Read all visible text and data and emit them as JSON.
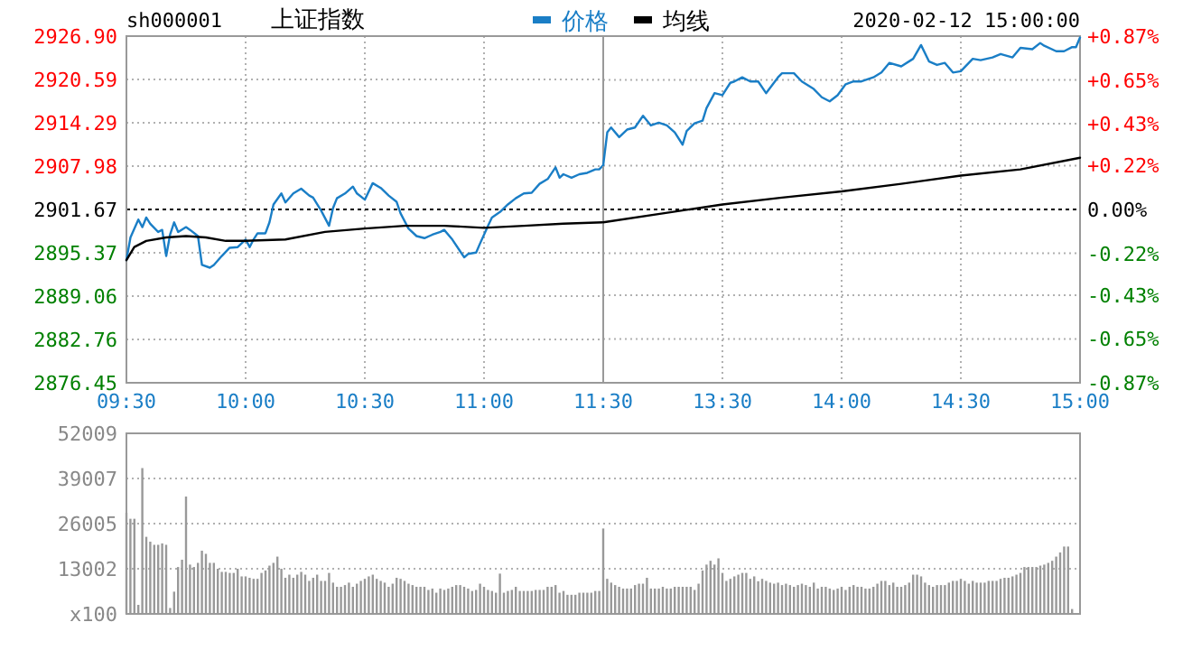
{
  "chart_data": [
    {
      "type": "line",
      "title": "上证指数",
      "subtitle": "sh000001",
      "legend": "top",
      "grid": true,
      "marker": "none",
      "line_style": "solid",
      "xlim": [
        9.5,
        11.5
      ],
      "xticks": [
        {
          "value": 9.5,
          "label": "09:30"
        },
        {
          "value": 10,
          "label": "10:00"
        },
        {
          "value": 10.5,
          "label": "10:30"
        },
        {
          "value": 11,
          "label": "11:00"
        },
        {
          "value": 11.5,
          "label": "11:30"
        }
      ],
      "ylim": [
        2876.45,
        2926.9
      ],
      "yticks": [
        {
          "value": 2876.45,
          "label": "2876.45"
        },
        {
          "value": 2882.76,
          "label": "2882.76"
        },
        {
          "value": 2889.06,
          "label": "2889.06"
        },
        {
          "value": 2895.37,
          "label": "2895.37"
        },
        {
          "value": 2901.67,
          "label": "2901.67"
        },
        {
          "value": 2907.98,
          "label": "2907.98"
        },
        {
          "value": 2914.29,
          "label": "2914.29"
        },
        {
          "value": 2920.59,
          "label": "2920.59"
        },
        {
          "value": 2926.9,
          "label": "2926.90"
        }
      ],
      "ref_lines": [
        {
          "axis": "y",
          "value": 2901.67,
          "color": "#000000",
          "line_style": "dotted"
        }
      ],
      "series": [
        {
          "name": "价格",
          "color": "#1a7ec6",
          "x": [
            9.5,
            9.517,
            9.55,
            9.567,
            9.583,
            9.6,
            9.633,
            9.65,
            9.667,
            9.683,
            9.7,
            9.717,
            9.75,
            9.767,
            9.8,
            9.817,
            9.85,
            9.867,
            9.9,
            9.933,
            9.967,
            10,
            10.017,
            10.033,
            10.05,
            10.083,
            10.1,
            10.117,
            10.15,
            10.167,
            10.2,
            10.233,
            10.267,
            10.283,
            10.317,
            10.35,
            10.367,
            10.383,
            10.417,
            10.45,
            10.467,
            10.5,
            10.533,
            10.567,
            10.6,
            10.633,
            10.65,
            10.683,
            10.717,
            10.75,
            10.783,
            10.817,
            10.833,
            10.867,
            10.917,
            10.933,
            10.967,
            10.983,
            11.017,
            11.033,
            11.067,
            11.1,
            11.133,
            11.167,
            11.2,
            11.233,
            11.267,
            11.3,
            11.317,
            11.333,
            11.367,
            11.4,
            11.433,
            11.467,
            11.483,
            11.5
          ],
          "values": [
            2894.3,
            2897.6,
            2900.2,
            2899.1,
            2900.5,
            2899.6,
            2898.4,
            2898.7,
            2894.9,
            2898.0,
            2899.8,
            2898.4,
            2899.1,
            2898.7,
            2897.8,
            2893.6,
            2893.2,
            2893.6,
            2894.9,
            2896.1,
            2896.2,
            2897.3,
            2896.2,
            2897.3,
            2898.2,
            2898.2,
            2899.8,
            2902.4,
            2904.0,
            2902.7,
            2904.0,
            2904.7,
            2903.7,
            2903.4,
            2901.5,
            2899.3,
            2901.9,
            2903.3,
            2904.0,
            2905.0,
            2904.0,
            2903.1,
            2905.5,
            2904.8,
            2903.7,
            2902.8,
            2901.1,
            2898.9,
            2897.8,
            2897.5,
            2898.0,
            2898.4,
            2898.7,
            2897.3,
            2894.7,
            2895.2,
            2895.4,
            2896.7,
            2899.3,
            2900.5,
            2901.3,
            2902.4,
            2903.3,
            2904.0,
            2904.1,
            2905.4,
            2906.1,
            2907.8,
            2906.3,
            2906.8,
            2906.3,
            2906.8,
            2907.0,
            2907.5,
            2907.5,
            2908.1
          ]
        },
        {
          "name": "均线",
          "color": "#000000",
          "x": [
            9.5,
            9.533,
            9.583,
            9.667,
            9.75,
            9.833,
            9.917,
            10,
            10.167,
            10.333,
            10.5,
            10.667,
            10.833,
            11,
            11.167,
            11.333,
            11.5
          ],
          "values": [
            2894.3,
            2896.2,
            2897.1,
            2897.6,
            2897.8,
            2897.6,
            2897.1,
            2897.1,
            2897.3,
            2898.4,
            2898.9,
            2899.3,
            2899.3,
            2899.0,
            2899.3,
            2899.6,
            2899.8
          ]
        }
      ]
    },
    {
      "type": "line",
      "annotations": [
        "2020-02-12 15:00:00"
      ],
      "grid": true,
      "marker": "none",
      "line_style": "solid",
      "xlim": [
        13,
        15
      ],
      "xticks": [
        {
          "value": 13.5,
          "label": "13:30"
        },
        {
          "value": 14,
          "label": "14:00"
        },
        {
          "value": 14.5,
          "label": "14:30"
        },
        {
          "value": 15,
          "label": "15:00"
        }
      ],
      "ylim": [
        2876.45,
        2926.9
      ],
      "y2lim": [
        -0.87,
        0.87
      ],
      "y2ticks": [
        {
          "value": -0.87,
          "label": "-0.87%"
        },
        {
          "value": -0.65,
          "label": "-0.65%"
        },
        {
          "value": -0.43,
          "label": "-0.43%"
        },
        {
          "value": -0.22,
          "label": "-0.22%"
        },
        {
          "value": 0,
          "label": "0.00%"
        },
        {
          "value": 0.22,
          "label": "+0.22%"
        },
        {
          "value": 0.43,
          "label": "+0.43%"
        },
        {
          "value": 0.65,
          "label": "+0.65%"
        },
        {
          "value": 0.87,
          "label": "+0.87%"
        }
      ],
      "ref_lines": [
        {
          "axis": "y",
          "value": 2901.67,
          "color": "#000000",
          "line_style": "dotted"
        }
      ],
      "series": [
        {
          "color": "#1a7ec6",
          "x": [
            13.0,
            13.017,
            13.033,
            13.067,
            13.1,
            13.133,
            13.167,
            13.2,
            13.233,
            13.267,
            13.3,
            13.333,
            13.35,
            13.383,
            13.417,
            13.433,
            13.467,
            13.5,
            13.533,
            13.55,
            13.583,
            13.617,
            13.65,
            13.683,
            13.733,
            13.75,
            13.8,
            13.833,
            13.883,
            13.917,
            13.95,
            13.983,
            14.017,
            14.05,
            14.083,
            14.133,
            14.167,
            14.2,
            14.25,
            14.3,
            14.333,
            14.367,
            14.4,
            14.433,
            14.467,
            14.5,
            14.55,
            14.583,
            14.633,
            14.667,
            14.717,
            14.75,
            14.8,
            14.833,
            14.85,
            14.9,
            14.933,
            14.967,
            14.983,
            15
          ],
          "values": [
            2908.1,
            2912.9,
            2913.6,
            2912.2,
            2913.3,
            2913.6,
            2915.3,
            2913.9,
            2914.3,
            2913.9,
            2912.9,
            2911.1,
            2913.1,
            2914.2,
            2914.6,
            2916.4,
            2918.6,
            2918.3,
            2920.1,
            2920.3,
            2920.9,
            2920.3,
            2920.3,
            2918.6,
            2920.9,
            2921.5,
            2921.5,
            2920.3,
            2919.2,
            2918.0,
            2917.4,
            2918.3,
            2919.9,
            2920.3,
            2920.3,
            2920.9,
            2921.6,
            2923.0,
            2922.5,
            2923.6,
            2925.6,
            2923.2,
            2922.7,
            2923.0,
            2921.6,
            2921.8,
            2923.6,
            2923.4,
            2923.8,
            2924.3,
            2923.8,
            2925.2,
            2925.0,
            2925.9,
            2925.5,
            2924.7,
            2924.7,
            2925.3,
            2925.3,
            2926.7
          ]
        },
        {
          "color": "#000000",
          "x": [
            13,
            13.25,
            13.5,
            13.75,
            14,
            14.25,
            14.5,
            14.75,
            15
          ],
          "values": [
            2899.8,
            2901.1,
            2902.4,
            2903.4,
            2904.3,
            2905.4,
            2906.6,
            2907.5,
            2909.2
          ]
        }
      ]
    },
    {
      "type": "bar",
      "color": "#999999",
      "grid": "y",
      "categories": [
        null,
        null,
        null,
        null,
        null,
        null,
        null,
        null,
        null,
        null,
        null,
        null,
        null,
        null,
        null,
        null,
        null,
        null,
        null,
        null,
        null,
        null,
        null,
        null,
        null,
        null,
        null,
        null,
        null,
        null,
        null,
        null,
        null,
        null,
        null,
        null,
        null,
        null,
        null,
        null,
        null,
        null,
        null,
        null,
        null,
        null,
        null,
        null,
        null,
        null,
        null,
        null,
        null,
        null,
        null,
        null,
        null,
        null,
        null,
        null,
        null,
        null,
        null,
        null,
        null,
        null,
        null,
        null,
        null,
        null,
        null,
        null,
        null,
        null,
        null,
        null,
        null,
        null,
        null,
        null,
        null,
        null,
        null,
        null,
        null,
        null,
        null,
        null,
        null,
        null,
        null,
        null,
        null,
        null,
        null,
        null,
        null,
        null,
        null,
        null,
        null,
        null,
        null,
        null,
        null,
        null,
        null,
        null,
        null,
        null,
        null,
        null,
        null,
        null,
        null,
        null,
        null,
        null,
        null,
        null,
        null,
        null,
        null,
        null,
        null,
        null,
        null,
        null,
        null,
        null,
        null,
        null,
        null,
        null,
        null,
        null,
        null,
        null,
        null,
        null,
        null,
        null,
        null,
        null,
        null,
        null,
        null,
        null,
        null,
        null,
        null,
        null,
        null,
        null,
        null,
        null,
        null,
        null,
        null,
        null,
        null,
        null,
        null,
        null,
        null,
        null,
        null,
        null,
        null,
        null,
        null,
        null,
        null,
        null,
        null,
        null,
        null,
        null,
        null,
        null,
        null,
        null,
        null,
        null,
        null,
        null,
        null,
        null,
        null,
        null,
        null,
        null,
        null,
        null,
        null,
        null,
        null,
        null,
        null,
        null,
        null,
        null,
        null,
        null,
        null,
        null,
        null,
        null,
        null,
        null,
        null,
        null,
        null,
        null,
        null,
        null,
        null,
        null,
        null,
        null,
        null,
        null,
        null,
        null,
        null,
        null,
        null,
        null,
        null,
        null,
        null,
        null,
        null,
        null,
        null,
        null,
        null,
        null,
        null,
        null,
        null
      ],
      "ylim": [
        0,
        52009
      ],
      "yticks": [
        {
          "value": 0,
          "label": "x100"
        },
        13002,
        26005,
        39007,
        52009
      ],
      "values": [
        29100,
        27400,
        27400,
        2600,
        42000,
        22200,
        20800,
        19900,
        19900,
        20300,
        19900,
        1700,
        6400,
        13500,
        15600,
        33800,
        14200,
        13500,
        14700,
        18200,
        17300,
        14700,
        14700,
        13000,
        12100,
        12100,
        11800,
        11800,
        13000,
        10800,
        10800,
        10400,
        10100,
        10100,
        11800,
        12500,
        13900,
        14700,
        16500,
        13000,
        10400,
        11300,
        10400,
        11300,
        12100,
        11300,
        9500,
        10400,
        11300,
        9500,
        9500,
        11800,
        9000,
        7800,
        7800,
        8300,
        9000,
        7800,
        8700,
        9500,
        10100,
        10800,
        11300,
        10100,
        9500,
        9000,
        7800,
        8700,
        10400,
        10100,
        9500,
        8700,
        8300,
        7800,
        7800,
        7800,
        6900,
        7300,
        6100,
        7300,
        6900,
        7300,
        7800,
        8300,
        8300,
        7800,
        7300,
        6600,
        6900,
        8700,
        7800,
        6900,
        6600,
        6100,
        11600,
        6100,
        6600,
        6900,
        7800,
        6600,
        6600,
        6600,
        6600,
        6900,
        6900,
        6900,
        7800,
        7800,
        8300,
        6100,
        6600,
        5500,
        5500,
        5500,
        6100,
        6100,
        6100,
        6100,
        6600,
        6600,
        24600,
        10100,
        9000,
        8300,
        7800,
        7300,
        7300,
        7300,
        8300,
        8700,
        8700,
        10400,
        7300,
        7300,
        7300,
        7800,
        7300,
        7300,
        7800,
        7800,
        7800,
        7800,
        7800,
        6900,
        8700,
        12500,
        14200,
        15300,
        14200,
        16000,
        11800,
        9500,
        10100,
        10800,
        11300,
        11800,
        11800,
        10100,
        10800,
        9400,
        10100,
        9500,
        9000,
        8700,
        9000,
        8300,
        8700,
        8300,
        7800,
        8300,
        8700,
        8300,
        7800,
        9000,
        7300,
        7800,
        7800,
        7300,
        6900,
        7300,
        7800,
        6900,
        7800,
        8300,
        7800,
        7800,
        7300,
        7300,
        7800,
        8700,
        9500,
        9500,
        8300,
        9000,
        7800,
        7800,
        8300,
        9000,
        11300,
        11300,
        10800,
        9000,
        8300,
        7800,
        8300,
        8300,
        8300,
        9000,
        9500,
        9500,
        10100,
        9500,
        8700,
        9500,
        9000,
        9000,
        9000,
        9500,
        9500,
        9500,
        10100,
        10400,
        10400,
        10800,
        11300,
        11800,
        13500,
        13500,
        13500,
        13500,
        13900,
        14200,
        14700,
        15300,
        16500,
        17700,
        19400,
        19400,
        1400,
        null,
        null
      ]
    }
  ]
}
